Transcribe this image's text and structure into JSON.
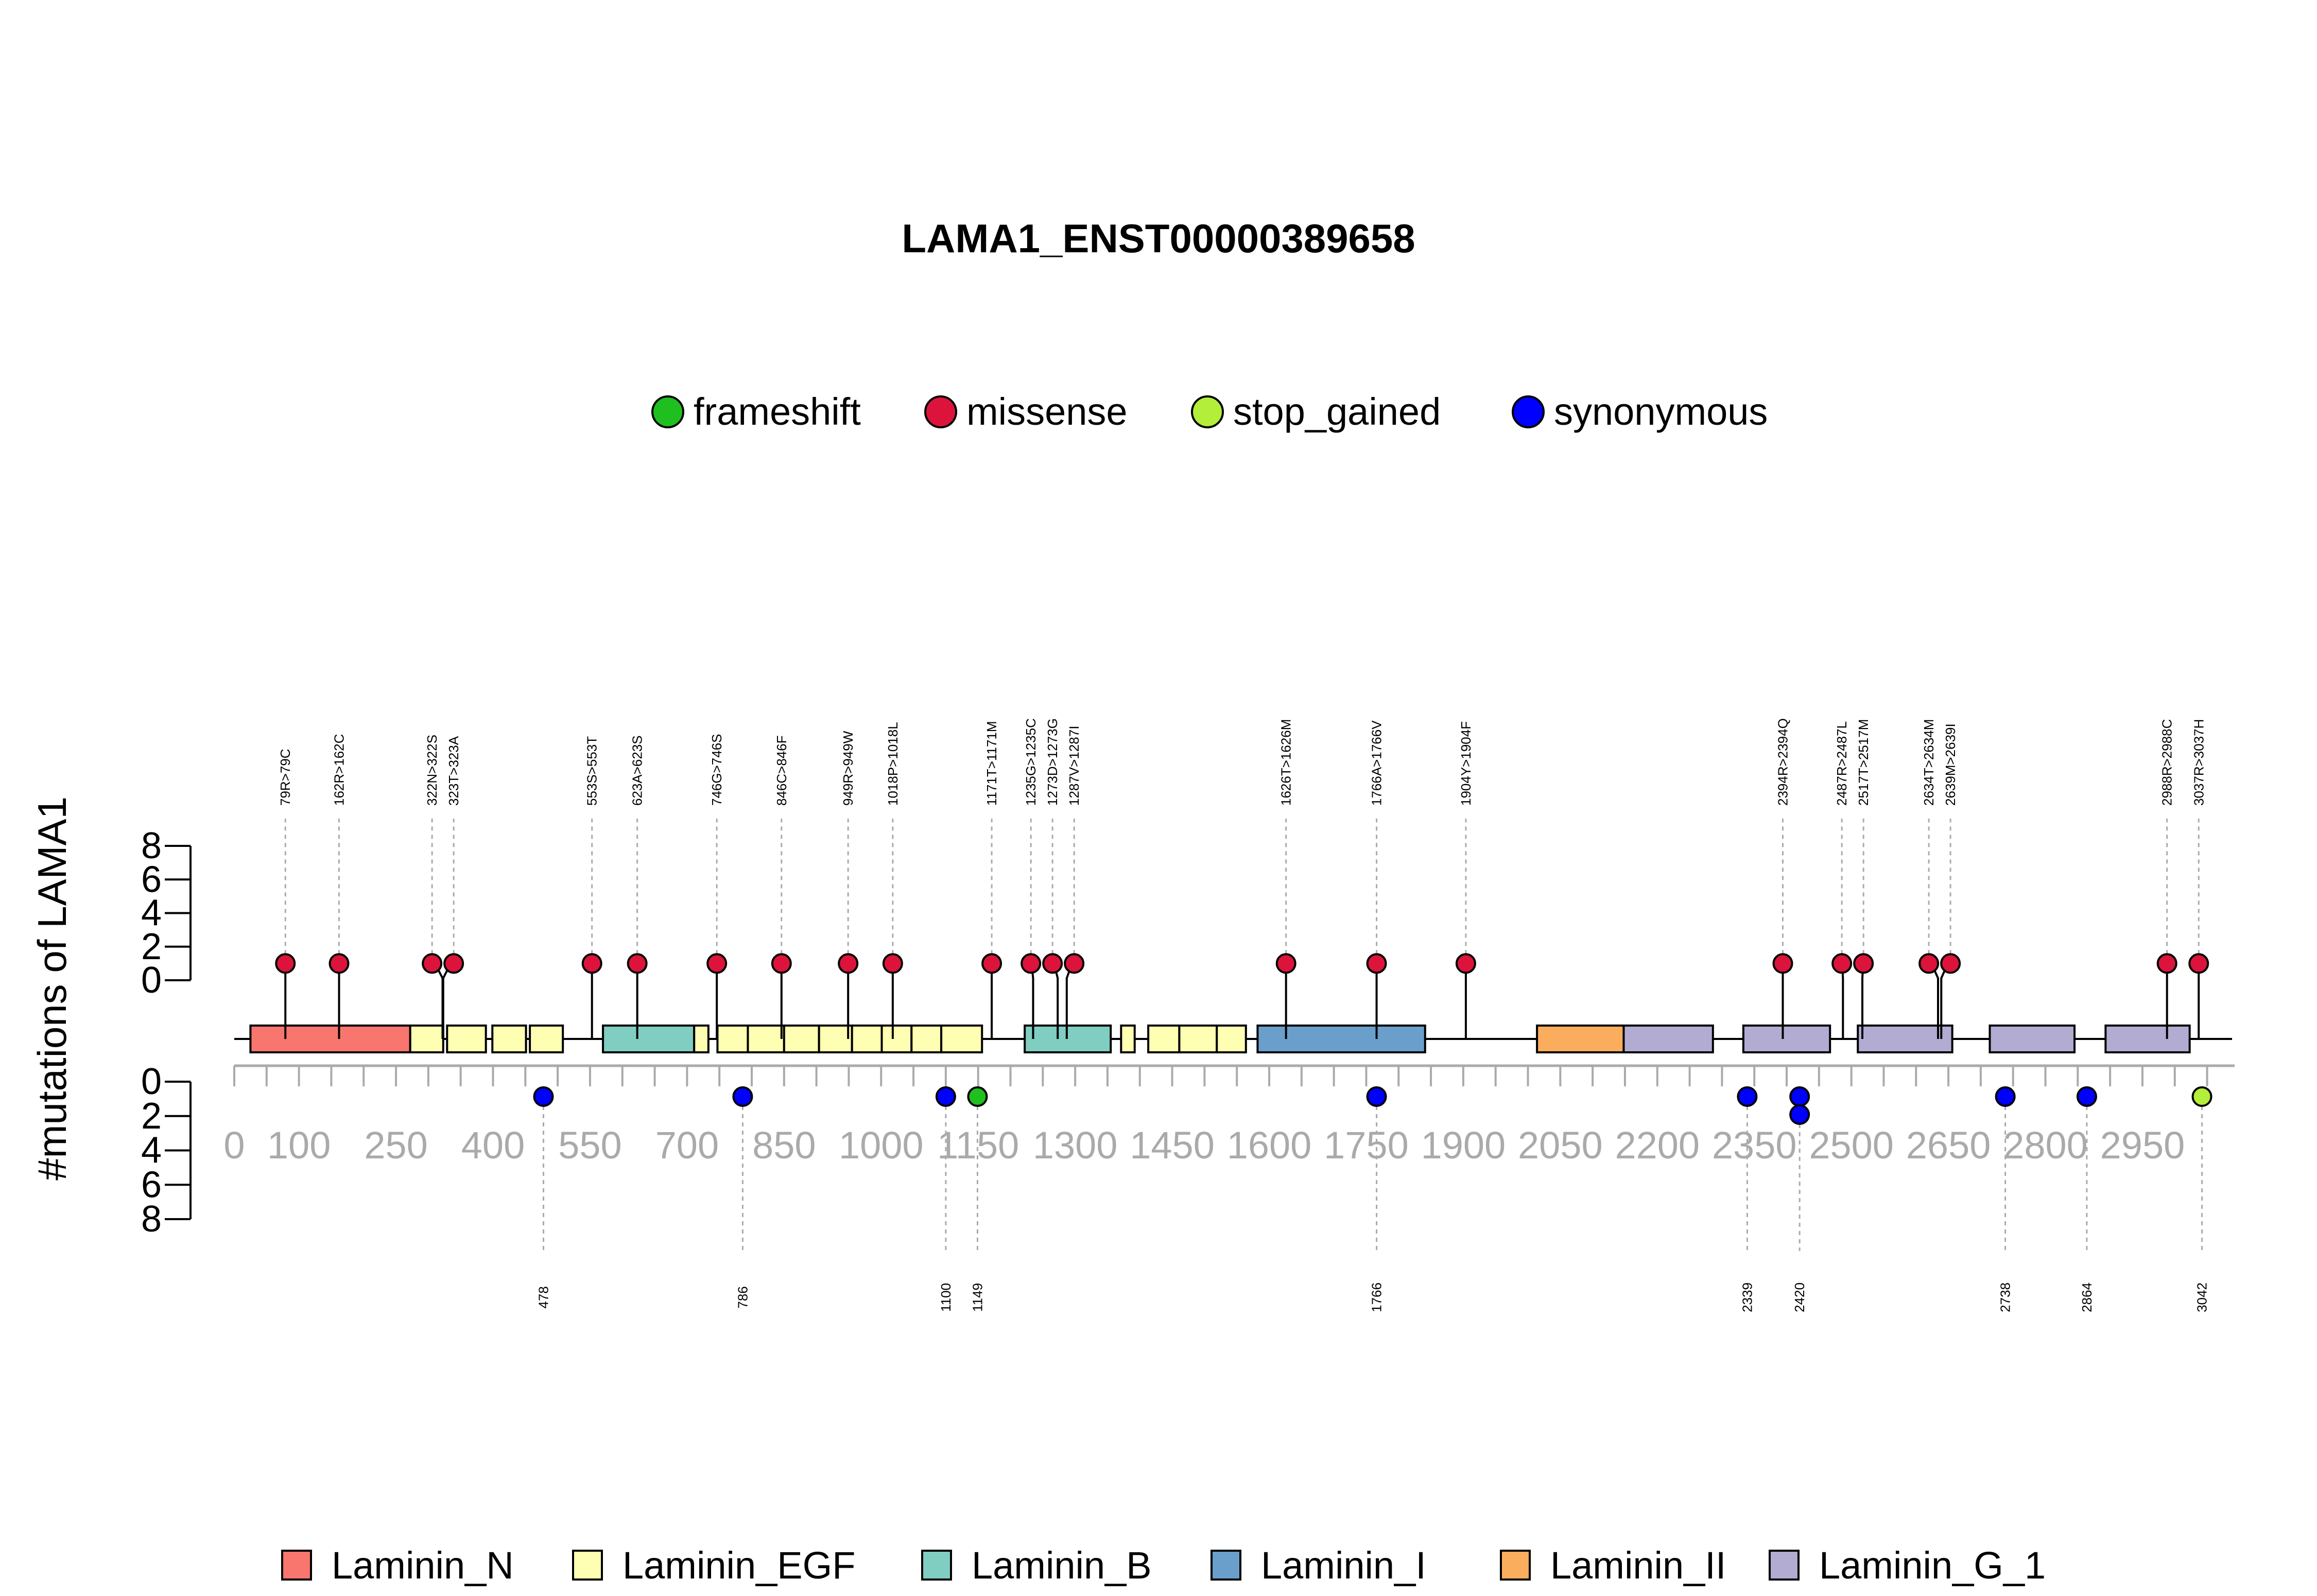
{
  "chart_data": {
    "type": "lollipop",
    "title": "LAMA1_ENST00000389658",
    "ylabel": "#mutations of LAMA1",
    "protein_length": 3075,
    "xlim": [
      0,
      3075
    ],
    "x_ticks": [
      0,
      100,
      250,
      400,
      550,
      700,
      850,
      1000,
      1150,
      1300,
      1450,
      1600,
      1750,
      1900,
      2050,
      2200,
      2350,
      2500,
      2650,
      2800,
      2950
    ],
    "x_tick_labels": [
      "0",
      "100",
      "250",
      "400",
      "550",
      "700",
      "850",
      "1000",
      "1150",
      "1300",
      "1450",
      "1600",
      "1750",
      "1900",
      "2050",
      "2200",
      "2350",
      "2500",
      "2650",
      "2800",
      "2950"
    ],
    "y_ticks_upper": [
      "0",
      "2",
      "4",
      "6",
      "8"
    ],
    "y_ticks_lower": [
      "0",
      "2",
      "4",
      "6",
      "8"
    ],
    "ylim": [
      0,
      8
    ],
    "mutation_types": [
      {
        "name": "frameshift",
        "color": "#1fbf1f"
      },
      {
        "name": "missense",
        "color": "#dc143c"
      },
      {
        "name": "stop_gained",
        "color": "#b3ee3a"
      },
      {
        "name": "synonymous",
        "color": "#0000ff"
      }
    ],
    "domain_types": [
      {
        "name": "Laminin_N",
        "color": "#f8766d"
      },
      {
        "name": "Laminin_EGF",
        "color": "#ffffb3"
      },
      {
        "name": "Laminin_B",
        "color": "#80cdc1"
      },
      {
        "name": "Laminin_I",
        "color": "#6a9fcb"
      },
      {
        "name": "Laminin_II",
        "color": "#fbad5e"
      },
      {
        "name": "Laminin_G_1",
        "color": "#b2abd2"
      }
    ],
    "domains": [
      {
        "type": "Laminin_N",
        "start": 25,
        "end": 272
      },
      {
        "type": "Laminin_EGF",
        "start": 272,
        "end": 323
      },
      {
        "type": "Laminin_EGF",
        "start": 329,
        "end": 389
      },
      {
        "type": "Laminin_EGF",
        "start": 399,
        "end": 451
      },
      {
        "type": "Laminin_EGF",
        "start": 457,
        "end": 508
      },
      {
        "type": "Laminin_B",
        "start": 570,
        "end": 711
      },
      {
        "type": "Laminin_EGF",
        "start": 711,
        "end": 733
      },
      {
        "type": "Laminin_EGF",
        "start": 747,
        "end": 794
      },
      {
        "type": "Laminin_EGF",
        "start": 794,
        "end": 850
      },
      {
        "type": "Laminin_EGF",
        "start": 850,
        "end": 904
      },
      {
        "type": "Laminin_EGF",
        "start": 904,
        "end": 955
      },
      {
        "type": "Laminin_EGF",
        "start": 955,
        "end": 1001
      },
      {
        "type": "Laminin_EGF",
        "start": 1001,
        "end": 1047
      },
      {
        "type": "Laminin_EGF",
        "start": 1047,
        "end": 1093
      },
      {
        "type": "Laminin_EGF",
        "start": 1093,
        "end": 1156
      },
      {
        "type": "Laminin_B",
        "start": 1222,
        "end": 1355
      },
      {
        "type": "Laminin_EGF",
        "start": 1371,
        "end": 1392
      },
      {
        "type": "Laminin_EGF",
        "start": 1413,
        "end": 1461
      },
      {
        "type": "Laminin_EGF",
        "start": 1461,
        "end": 1519
      },
      {
        "type": "Laminin_EGF",
        "start": 1519,
        "end": 1564
      },
      {
        "type": "Laminin_I",
        "start": 1582,
        "end": 1841
      },
      {
        "type": "Laminin_II",
        "start": 2014,
        "end": 2148
      },
      {
        "type": "Laminin_G_1",
        "start": 2148,
        "end": 2286
      },
      {
        "type": "Laminin_G_1",
        "start": 2333,
        "end": 2467
      },
      {
        "type": "Laminin_G_1",
        "start": 2510,
        "end": 2656
      },
      {
        "type": "Laminin_G_1",
        "start": 2714,
        "end": 2845
      },
      {
        "type": "Laminin_G_1",
        "start": 2893,
        "end": 3023
      }
    ],
    "mutations_upper": [
      {
        "label": "79R>79C",
        "pos": 79,
        "count": 1,
        "type": "missense"
      },
      {
        "label": "162R>162C",
        "pos": 162,
        "count": 1,
        "type": "missense"
      },
      {
        "label": "322N>322S",
        "pos": 322,
        "count": 1,
        "type": "missense"
      },
      {
        "label": "323T>323A",
        "pos": 323,
        "count": 1,
        "type": "missense"
      },
      {
        "label": "553S>553T",
        "pos": 553,
        "count": 1,
        "type": "missense"
      },
      {
        "label": "623A>623S",
        "pos": 623,
        "count": 1,
        "type": "missense"
      },
      {
        "label": "746G>746S",
        "pos": 746,
        "count": 1,
        "type": "missense"
      },
      {
        "label": "846C>846F",
        "pos": 846,
        "count": 1,
        "type": "missense"
      },
      {
        "label": "949R>949W",
        "pos": 949,
        "count": 1,
        "type": "missense"
      },
      {
        "label": "1018P>1018L",
        "pos": 1018,
        "count": 1,
        "type": "missense"
      },
      {
        "label": "1171T>1171M",
        "pos": 1171,
        "count": 1,
        "type": "missense"
      },
      {
        "label": "1235G>1235C",
        "pos": 1235,
        "count": 1,
        "type": "missense"
      },
      {
        "label": "1273D>1273G",
        "pos": 1273,
        "count": 1,
        "type": "missense"
      },
      {
        "label": "1287V>1287I",
        "pos": 1287,
        "count": 1,
        "type": "missense"
      },
      {
        "label": "1626T>1626M",
        "pos": 1626,
        "count": 1,
        "type": "missense"
      },
      {
        "label": "1766A>1766V",
        "pos": 1766,
        "count": 1,
        "type": "missense"
      },
      {
        "label": "1904Y>1904F",
        "pos": 1904,
        "count": 1,
        "type": "missense"
      },
      {
        "label": "2394R>2394Q",
        "pos": 2394,
        "count": 1,
        "type": "missense"
      },
      {
        "label": "2487R>2487L",
        "pos": 2487,
        "count": 1,
        "type": "missense"
      },
      {
        "label": "2517T>2517M",
        "pos": 2517,
        "count": 1,
        "type": "missense"
      },
      {
        "label": "2634T>2634M",
        "pos": 2634,
        "count": 1,
        "type": "missense"
      },
      {
        "label": "2639M>2639I",
        "pos": 2639,
        "count": 1,
        "type": "missense"
      },
      {
        "label": "2988R>2988C",
        "pos": 2988,
        "count": 1,
        "type": "missense"
      },
      {
        "label": "3037R>3037H",
        "pos": 3037,
        "count": 1,
        "type": "missense"
      }
    ],
    "mutations_lower": [
      {
        "label": "478",
        "pos": 478,
        "count": 1,
        "type": "synonymous"
      },
      {
        "label": "786",
        "pos": 786,
        "count": 1,
        "type": "synonymous"
      },
      {
        "label": "1100",
        "pos": 1100,
        "count": 1,
        "type": "synonymous"
      },
      {
        "label": "1149",
        "pos": 1149,
        "count": 1,
        "type": "frameshift"
      },
      {
        "label": "1766",
        "pos": 1766,
        "count": 1,
        "type": "synonymous"
      },
      {
        "label": "2339",
        "pos": 2339,
        "count": 1,
        "type": "synonymous"
      },
      {
        "label": "2420",
        "pos": 2420,
        "count": 2,
        "type": "synonymous"
      },
      {
        "label": "2738",
        "pos": 2738,
        "count": 1,
        "type": "synonymous"
      },
      {
        "label": "2864",
        "pos": 2864,
        "count": 1,
        "type": "synonymous"
      },
      {
        "label": "3042",
        "pos": 3042,
        "count": 1,
        "type": "stop_gained"
      }
    ]
  }
}
